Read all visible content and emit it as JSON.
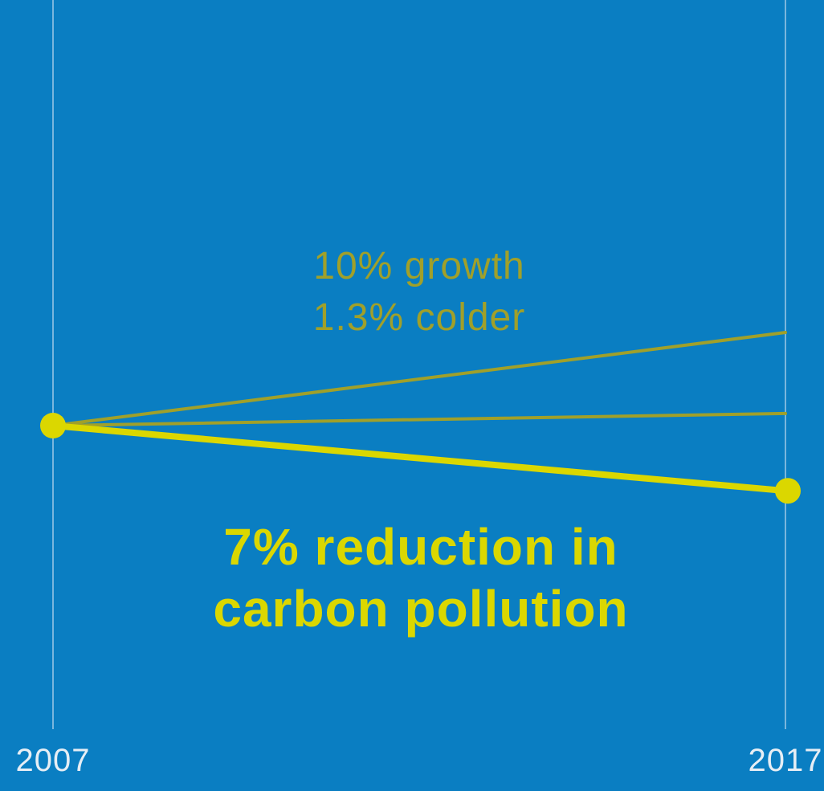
{
  "colors": {
    "background": "#0a7ec2",
    "gridline": "#9fc9e6",
    "highlight": "#dbd700",
    "muted": "#a0a02a",
    "axis_text": "#e6eef5"
  },
  "annotations": {
    "growth_line1": "10% growth",
    "growth_line2": "1.3% colder",
    "headline_line1": "7% reduction in",
    "headline_line2": "carbon pollution"
  },
  "chart_data": {
    "type": "line",
    "title": "",
    "xlabel": "",
    "ylabel": "",
    "x": [
      "2007",
      "2017"
    ],
    "ylim": [
      -12,
      12
    ],
    "series": [
      {
        "name": "",
        "values": [
          0,
          10
        ],
        "style": "muted"
      },
      {
        "name": "",
        "values": [
          0,
          1.3
        ],
        "style": "muted"
      },
      {
        "name": "",
        "values": [
          0,
          -7
        ],
        "style": "highlight",
        "markers": true
      }
    ],
    "grid": false,
    "legend": "none"
  }
}
